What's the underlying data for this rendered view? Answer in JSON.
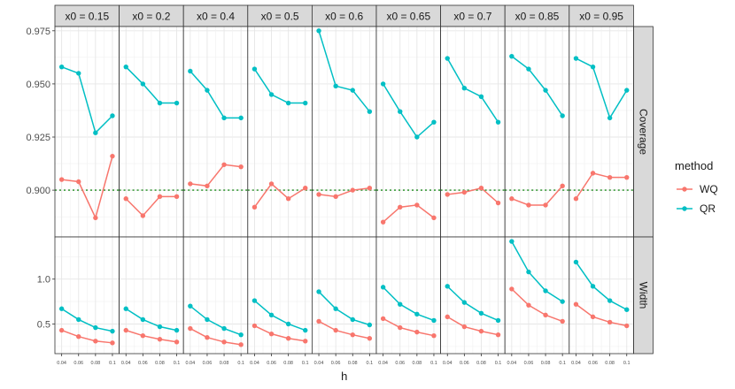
{
  "chart_data": {
    "type": "line",
    "xlabel": "h",
    "x_ticks": [
      0.04,
      0.06,
      0.08,
      0.1
    ],
    "x_tick_labels": [
      "0.04",
      "0.06",
      "0.08",
      "0.1"
    ],
    "xlim": [
      0.032,
      0.108
    ],
    "facet_columns": [
      "x0 = 0.15",
      "x0 = 0.2",
      "x0 = 0.4",
      "x0 = 0.5",
      "x0 = 0.6",
      "x0 = 0.65",
      "x0 = 0.7",
      "x0 = 0.85",
      "x0 = 0.95"
    ],
    "colors": {
      "WQ": "#F8766D",
      "QR": "#00BFC4",
      "reference": "#1a8a1a",
      "strip_bg": "#d9d9d9",
      "panel_border": "#333333"
    },
    "legend": {
      "title": "method",
      "entries": [
        "WQ",
        "QR"
      ],
      "position": "right"
    },
    "grid": true,
    "rows": [
      {
        "label": "Coverage",
        "ylim": [
          0.878,
          0.977
        ],
        "y_ticks": [
          0.9,
          0.925,
          0.95,
          0.975
        ],
        "y_tick_labels": [
          "0.900",
          "0.925",
          "0.950",
          "0.975"
        ],
        "reference_line": 0.9,
        "panels": [
          {
            "WQ": [
              0.905,
              0.904,
              0.887,
              0.916
            ],
            "QR": [
              0.958,
              0.955,
              0.927,
              0.935
            ]
          },
          {
            "WQ": [
              0.896,
              0.888,
              0.897,
              0.897
            ],
            "QR": [
              0.958,
              0.95,
              0.941,
              0.941
            ]
          },
          {
            "WQ": [
              0.903,
              0.902,
              0.912,
              0.911
            ],
            "QR": [
              0.956,
              0.947,
              0.934,
              0.934
            ]
          },
          {
            "WQ": [
              0.892,
              0.903,
              0.896,
              0.901
            ],
            "QR": [
              0.957,
              0.945,
              0.941,
              0.941
            ]
          },
          {
            "WQ": [
              0.898,
              0.897,
              0.9,
              0.901
            ],
            "QR": [
              0.975,
              0.949,
              0.947,
              0.937
            ]
          },
          {
            "WQ": [
              0.885,
              0.892,
              0.893,
              0.887
            ],
            "QR": [
              0.95,
              0.937,
              0.925,
              0.932
            ]
          },
          {
            "WQ": [
              0.898,
              0.899,
              0.901,
              0.894
            ],
            "QR": [
              0.962,
              0.948,
              0.944,
              0.932
            ]
          },
          {
            "WQ": [
              0.896,
              0.893,
              0.893,
              0.902
            ],
            "QR": [
              0.963,
              0.957,
              0.947,
              0.935
            ]
          },
          {
            "WQ": [
              0.896,
              0.908,
              0.906,
              0.906
            ],
            "QR": [
              0.962,
              0.958,
              0.934,
              0.947
            ]
          }
        ]
      },
      {
        "label": "Width",
        "ylim": [
          0.17,
          1.47
        ],
        "y_ticks": [
          0.5,
          1.0
        ],
        "y_tick_labels": [
          "0.5",
          "1.0"
        ],
        "panels": [
          {
            "WQ": [
              0.43,
              0.36,
              0.31,
              0.29
            ],
            "QR": [
              0.67,
              0.55,
              0.46,
              0.42
            ]
          },
          {
            "WQ": [
              0.43,
              0.37,
              0.33,
              0.3
            ],
            "QR": [
              0.67,
              0.55,
              0.47,
              0.43
            ]
          },
          {
            "WQ": [
              0.45,
              0.35,
              0.3,
              0.27
            ],
            "QR": [
              0.7,
              0.55,
              0.45,
              0.38
            ]
          },
          {
            "WQ": [
              0.48,
              0.39,
              0.34,
              0.31
            ],
            "QR": [
              0.76,
              0.6,
              0.5,
              0.43
            ]
          },
          {
            "WQ": [
              0.53,
              0.43,
              0.38,
              0.34
            ],
            "QR": [
              0.86,
              0.67,
              0.55,
              0.49
            ]
          },
          {
            "WQ": [
              0.56,
              0.46,
              0.41,
              0.37
            ],
            "QR": [
              0.91,
              0.72,
              0.61,
              0.54
            ]
          },
          {
            "WQ": [
              0.58,
              0.47,
              0.42,
              0.38
            ],
            "QR": [
              0.92,
              0.74,
              0.62,
              0.54
            ]
          },
          {
            "WQ": [
              0.89,
              0.71,
              0.6,
              0.53
            ],
            "QR": [
              1.42,
              1.08,
              0.87,
              0.75
            ]
          },
          {
            "WQ": [
              0.72,
              0.58,
              0.52,
              0.48
            ],
            "QR": [
              1.19,
              0.92,
              0.76,
              0.66
            ]
          }
        ]
      }
    ]
  }
}
